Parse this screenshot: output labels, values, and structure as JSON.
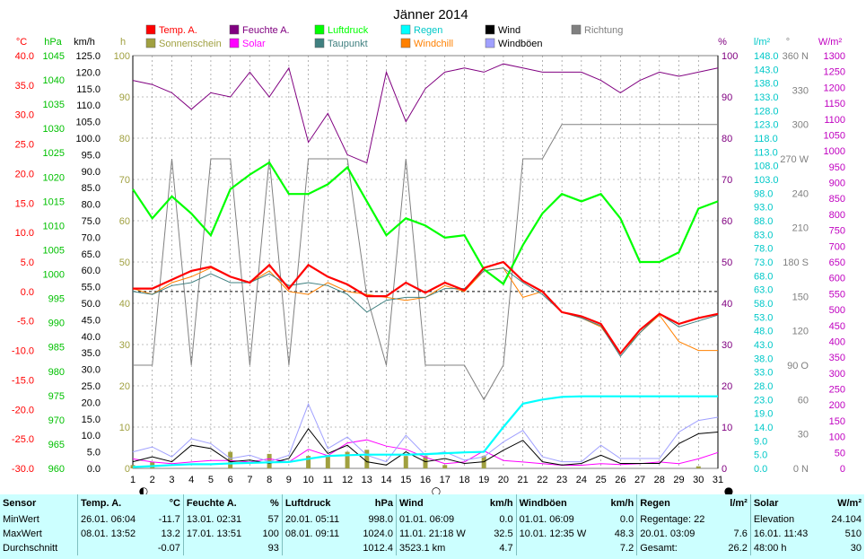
{
  "chart_data": {
    "type": "line",
    "title": "Jänner 2014",
    "x": [
      1,
      2,
      3,
      4,
      5,
      6,
      7,
      8,
      9,
      10,
      11,
      12,
      13,
      14,
      15,
      16,
      17,
      18,
      19,
      20,
      21,
      22,
      23,
      24,
      25,
      26,
      27,
      28,
      29,
      30,
      31
    ],
    "x_ticks": [
      "1",
      "2",
      "3",
      "4",
      "5",
      "6",
      "7",
      "8",
      "9",
      "10",
      "11",
      "12",
      "13",
      "14",
      "15",
      "16",
      "17",
      "18",
      "19",
      "20",
      "21",
      "22",
      "23",
      "24",
      "25",
      "26",
      "27",
      "28",
      "29",
      "30",
      "31"
    ],
    "axes": {
      "temp_c": {
        "unit": "°C",
        "range": [
          -30,
          40
        ],
        "ticks": [
          "40.0",
          "35.0",
          "30.0",
          "25.0",
          "20.0",
          "15.0",
          "10.0",
          "5.0",
          "0.0",
          "-5.0",
          "-10.0",
          "-15.0",
          "-20.0",
          "-25.0",
          "-30.0"
        ]
      },
      "pressure_hpa": {
        "unit": "hPa",
        "range": [
          960,
          1045
        ],
        "ticks": [
          "1045",
          "1040",
          "1035",
          "1030",
          "1025",
          "1020",
          "1015",
          "1010",
          "1005",
          "1000",
          "995",
          "990",
          "985",
          "980",
          "975",
          "970",
          "965",
          "960"
        ]
      },
      "wind_kmh": {
        "unit": "km/h",
        "range": [
          0,
          125
        ],
        "ticks": [
          "125.0",
          "120.0",
          "115.0",
          "110.0",
          "105.0",
          "100.0",
          "95.0",
          "90.0",
          "85.0",
          "80.0",
          "75.0",
          "70.0",
          "65.0",
          "60.0",
          "55.0",
          "50.0",
          "45.0",
          "40.0",
          "35.0",
          "30.0",
          "25.0",
          "20.0",
          "15.0",
          "10.0",
          "5.0",
          "0.0"
        ]
      },
      "sun_h": {
        "unit": "h",
        "range": [
          0,
          100
        ],
        "ticks": [
          "100",
          "90",
          "80",
          "70",
          "60",
          "50",
          "40",
          "30",
          "20",
          "10",
          "0"
        ]
      },
      "humidity_pct": {
        "unit": "%",
        "range": [
          0,
          100
        ],
        "ticks": [
          "100",
          "90",
          "80",
          "70",
          "60",
          "50",
          "40",
          "30",
          "20",
          "10",
          "0"
        ]
      },
      "rain_lm2": {
        "unit": "l/m²",
        "range": [
          0,
          150
        ],
        "ticks": [
          "148.0",
          "143.0",
          "138.0",
          "133.0",
          "128.0",
          "123.0",
          "118.0",
          "113.0",
          "108.0",
          "103.0",
          "98.0",
          "93.0",
          "88.0",
          "83.0",
          "78.0",
          "73.0",
          "68.0",
          "63.0",
          "58.0",
          "53.0",
          "48.0",
          "43.0",
          "38.0",
          "33.0",
          "28.0",
          "23.0",
          "19.0",
          "14.0",
          "9.0",
          "5.0",
          "0.0"
        ]
      },
      "direction_deg": {
        "unit": "°",
        "range": [
          0,
          360
        ],
        "ticks": [
          "360 N",
          "330",
          "300",
          "270 W",
          "240",
          "210",
          "180 S",
          "150",
          "120",
          "90 O",
          "60",
          "30",
          "0 N"
        ]
      },
      "solar_wm2": {
        "unit": "W/m²",
        "range": [
          0,
          1300
        ],
        "ticks": [
          "1300",
          "1250",
          "1200",
          "1150",
          "1100",
          "1050",
          "1000",
          "950",
          "900",
          "850",
          "800",
          "750",
          "700",
          "650",
          "600",
          "550",
          "500",
          "450",
          "400",
          "350",
          "300",
          "250",
          "200",
          "150",
          "100",
          "50",
          "0"
        ]
      }
    },
    "series": [
      {
        "name": "Temp. A.",
        "color": "#ff0000",
        "axis": "temp_c",
        "values": [
          0.5,
          0.5,
          2.0,
          3.5,
          4.2,
          2.5,
          1.5,
          4.5,
          0.5,
          4.5,
          2.5,
          1.2,
          -0.8,
          -0.8,
          1.5,
          -0.2,
          1.5,
          0.2,
          4.0,
          5.0,
          1.8,
          0.0,
          -3.5,
          -4.2,
          -5.5,
          -10.5,
          -6.5,
          -3.8,
          -5.5,
          -4.5,
          -3.8
        ]
      },
      {
        "name": "Feuchte A.",
        "color": "#800080",
        "axis": "humidity_pct",
        "values": [
          94,
          93,
          91,
          87,
          91,
          90,
          96,
          90,
          97,
          79,
          86,
          76,
          74,
          96,
          84,
          92,
          96,
          97,
          96,
          98,
          97,
          96,
          96,
          96,
          94,
          91,
          94,
          96,
          95,
          96,
          97
        ]
      },
      {
        "name": "Luftdruck",
        "color": "#00ff00",
        "axis": "pressure_hpa",
        "values": [
          1017.5,
          1011.5,
          1016.0,
          1012.5,
          1008.0,
          1017.5,
          1020.5,
          1023.0,
          1016.5,
          1016.5,
          1018.5,
          1022.0,
          1015.0,
          1008.0,
          1011.5,
          1010.0,
          1007.5,
          1008.0,
          1001.0,
          998.0,
          1006.0,
          1012.5,
          1016.5,
          1015.0,
          1016.5,
          1011.5,
          1002.5,
          1002.5,
          1004.5,
          1013.5,
          1015.0
        ]
      },
      {
        "name": "Taupunkt",
        "color": "#408080",
        "axis": "temp_c",
        "values": [
          0.0,
          -0.5,
          1.0,
          1.5,
          3.0,
          1.5,
          1.5,
          3.0,
          1.0,
          1.5,
          1.0,
          -0.5,
          -3.5,
          -1.5,
          -1.0,
          -1.0,
          0.5,
          0.5,
          3.5,
          4.0,
          1.5,
          -0.5,
          -3.5,
          -4.5,
          -5.8,
          -11.0,
          -7.0,
          -3.8,
          -6.0,
          -5.0,
          -4.0
        ]
      },
      {
        "name": "Windchill",
        "color": "#ff8000",
        "axis": "temp_c",
        "values": [
          0.5,
          -0.5,
          1.5,
          2.5,
          4.0,
          2.5,
          1.5,
          3.5,
          0.0,
          -0.5,
          1.5,
          0.0,
          -0.5,
          -1.0,
          -1.5,
          -1.0,
          1.0,
          0.0,
          3.5,
          4.0,
          -1.0,
          0.0,
          -3.5,
          -4.5,
          -6.0,
          -10.5,
          -7.0,
          -4.0,
          -8.5,
          -10.0,
          -10.0
        ]
      },
      {
        "name": "Wind",
        "color": "#000000",
        "axis": "wind_kmh",
        "values": [
          2.0,
          3.5,
          2.0,
          7.0,
          6.0,
          2.0,
          2.5,
          1.5,
          3.0,
          12.0,
          4.5,
          7.0,
          2.0,
          1.0,
          5.0,
          2.0,
          3.0,
          1.5,
          2.0,
          5.5,
          8.5,
          2.0,
          1.0,
          1.5,
          4.0,
          1.5,
          1.5,
          1.5,
          7.5,
          10.5,
          11.0
        ]
      },
      {
        "name": "Windböen",
        "color": "#a0a0ff",
        "axis": "wind_kmh",
        "values": [
          5.0,
          6.5,
          3.5,
          9.0,
          7.5,
          3.0,
          4.0,
          2.0,
          4.0,
          19.5,
          6.0,
          9.5,
          4.0,
          2.0,
          10.0,
          4.0,
          5.0,
          2.5,
          3.5,
          8.0,
          11.5,
          3.5,
          2.0,
          2.0,
          7.0,
          3.0,
          3.0,
          3.0,
          11.0,
          14.5,
          15.5
        ]
      },
      {
        "name": "Regen",
        "color": "#00ffff",
        "axis": "rain_lm2",
        "cumulative": true,
        "values": [
          0.5,
          0.8,
          1.2,
          1.5,
          1.5,
          1.8,
          2.0,
          2.2,
          2.3,
          3.5,
          4.5,
          4.8,
          5.0,
          5.0,
          5.0,
          5.2,
          5.5,
          5.8,
          6.0,
          15.0,
          23.5,
          25.0,
          26.0,
          26.2,
          26.2,
          26.2,
          26.2,
          26.2,
          26.2,
          26.2,
          26.2
        ]
      },
      {
        "name": "Sonnenschein",
        "color": "#a0a040",
        "axis": "sun_h",
        "type": "bar",
        "values": [
          0.8,
          1.5,
          0,
          0,
          0,
          4.0,
          0,
          3.5,
          0,
          3.0,
          3.2,
          4.0,
          4.5,
          0,
          3.0,
          3.0,
          0.8,
          0,
          3.0,
          0,
          0,
          0,
          0,
          0,
          0,
          0,
          0,
          0,
          0,
          0.5,
          0
        ]
      },
      {
        "name": "Solar",
        "color": "#ff00ff",
        "axis": "solar_wm2",
        "values": [
          30,
          20,
          15,
          20,
          25,
          25,
          20,
          30,
          20,
          60,
          40,
          80,
          90,
          70,
          60,
          35,
          15,
          20,
          55,
          25,
          20,
          15,
          10,
          10,
          15,
          12,
          15,
          20,
          15,
          30,
          50
        ]
      },
      {
        "name": "Richtung",
        "color": "#808080",
        "axis": "direction_deg",
        "values": [
          90,
          90,
          270,
          90,
          270,
          270,
          90,
          270,
          90,
          270,
          270,
          270,
          150,
          90,
          270,
          90,
          90,
          90,
          60,
          90,
          270,
          270,
          300,
          300,
          300,
          300,
          300,
          300,
          300,
          300,
          300
        ]
      }
    ],
    "reference_line": {
      "axis": "temp_c",
      "value": 0
    },
    "moon_markers": [
      {
        "day": 1,
        "symbol": "◐"
      },
      {
        "day": 16,
        "symbol": "○"
      },
      {
        "day": 31,
        "symbol": "●"
      }
    ]
  },
  "stats": {
    "headers": [
      [
        "Sensor",
        ""
      ],
      [
        "Temp. A.",
        "°C"
      ],
      [
        "Feuchte A.",
        "%"
      ],
      [
        "Luftdruck",
        "hPa"
      ],
      [
        "Wind",
        "km/h"
      ],
      [
        "Windböen",
        "km/h"
      ],
      [
        "Regen",
        "l/m²"
      ],
      [
        "Solar",
        "W/m²"
      ]
    ],
    "rows": [
      {
        "label": "MinWert",
        "cells": [
          [
            "26.01.  06:04",
            "-11.7"
          ],
          [
            "13.01.  02:31",
            "57"
          ],
          [
            "20.01.  05:11",
            "998.0"
          ],
          [
            "01.01.  06:09",
            "0.0"
          ],
          [
            "01.01.  06:09",
            "0.0"
          ],
          [
            "Regentage: 22",
            ""
          ],
          [
            "Elevation",
            "24.104"
          ]
        ]
      },
      {
        "label": "MaxWert",
        "cells": [
          [
            "08.01.  13:52",
            "13.2"
          ],
          [
            "17.01.  13:51",
            "100"
          ],
          [
            "08.01.  09:11",
            "1024.0"
          ],
          [
            "11.01.  21:18  W",
            "32.5"
          ],
          [
            "10.01.  12:35  W",
            "48.3"
          ],
          [
            "20.01.  03:09",
            "7.6"
          ],
          [
            "16.01.  11:43",
            "510"
          ]
        ]
      },
      {
        "label": "Durchschnitt",
        "cells": [
          [
            "",
            "-0.07"
          ],
          [
            "",
            "93"
          ],
          [
            "",
            "1012.4"
          ],
          [
            "3523.1 km",
            "4.7"
          ],
          [
            "",
            "7.2"
          ],
          [
            "Gesamt:",
            "26.2"
          ],
          [
            "48:00 h",
            "30"
          ]
        ]
      }
    ]
  }
}
